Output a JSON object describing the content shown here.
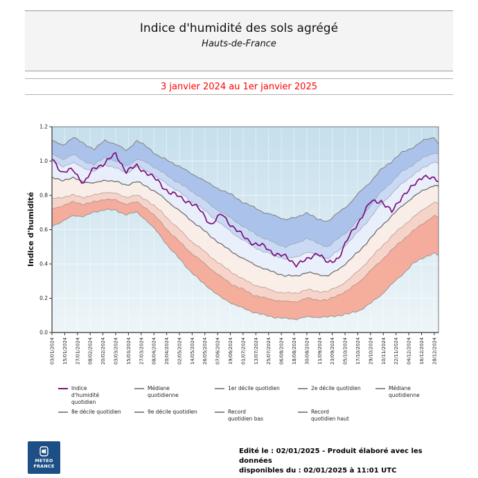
{
  "header": {
    "title": "Indice d'humidité des sols agrégé",
    "subtitle": "Hauts-de-France",
    "period": "3 janvier 2024 au 1er janvier 2025",
    "period_color": "#ff0000"
  },
  "chart_data": {
    "type": "area",
    "title": "Indice d'humidité des sols agrégé - Hauts-de-France",
    "xlabel": "",
    "ylabel": "Indice d'humidité",
    "ylim": [
      0,
      1.2
    ],
    "y_ticks": [
      "0.0",
      "0.2",
      "0.4",
      "0.6",
      "0.8",
      "1.0",
      "1.2"
    ],
    "x_tick_interval_days": 12,
    "x_tick_labels": [
      "03/01/2024",
      "15/01/2024",
      "27/01/2024",
      "08/02/2024",
      "20/02/2024",
      "03/03/2024",
      "15/03/2024",
      "27/03/2024",
      "08/04/2024",
      "20/04/2024",
      "02/05/2024",
      "14/05/2024",
      "26/05/2024",
      "07/06/2024",
      "19/06/2024",
      "01/07/2024",
      "13/07/2024",
      "25/07/2024",
      "06/08/2024",
      "18/08/2024",
      "30/08/2024",
      "11/09/2024",
      "23/09/2024",
      "05/10/2024",
      "17/10/2024",
      "29/10/2024",
      "10/11/2024",
      "22/11/2024",
      "04/12/2024",
      "16/12/2024",
      "28/12/2024"
    ],
    "sample_days": [
      0,
      10,
      20,
      30,
      40,
      50,
      60,
      70,
      80,
      90,
      100,
      110,
      120,
      130,
      140,
      150,
      160,
      170,
      180,
      190,
      200,
      210,
      220,
      230,
      240,
      250,
      260,
      270,
      280,
      290,
      300,
      310,
      320,
      330,
      340,
      350,
      360,
      364
    ],
    "background_gradient": [
      "#c5dfec",
      "#eef5f8"
    ],
    "series": [
      {
        "name": "Record quotidien haut",
        "color": "#868686",
        "width": 1.1,
        "values": [
          1.12,
          1.09,
          1.14,
          1.1,
          1.07,
          1.12,
          1.1,
          1.06,
          1.12,
          1.08,
          1.03,
          1.0,
          0.97,
          0.93,
          0.9,
          0.86,
          0.83,
          0.8,
          0.76,
          0.73,
          0.7,
          0.68,
          0.66,
          0.67,
          0.7,
          0.66,
          0.65,
          0.7,
          0.75,
          0.82,
          0.88,
          0.95,
          1.0,
          1.05,
          1.08,
          1.12,
          1.14,
          1.1
        ]
      },
      {
        "name": "9e décile quotidien",
        "color": "#a3aebc",
        "width": 1.0,
        "values": [
          1.04,
          1.01,
          1.04,
          1.0,
          0.98,
          1.02,
          1.0,
          0.97,
          1.01,
          0.99,
          0.95,
          0.91,
          0.87,
          0.83,
          0.79,
          0.74,
          0.7,
          0.66,
          0.62,
          0.58,
          0.55,
          0.52,
          0.5,
          0.52,
          0.55,
          0.52,
          0.5,
          0.55,
          0.6,
          0.67,
          0.74,
          0.82,
          0.88,
          0.94,
          0.98,
          1.02,
          1.05,
          1.04
        ]
      },
      {
        "name": "8e décile quotidien",
        "color": "#aab3bf",
        "width": 1.0,
        "values": [
          1.0,
          0.97,
          0.99,
          0.96,
          0.94,
          0.98,
          0.96,
          0.93,
          0.97,
          0.94,
          0.9,
          0.86,
          0.82,
          0.77,
          0.73,
          0.68,
          0.63,
          0.58,
          0.54,
          0.5,
          0.47,
          0.45,
          0.43,
          0.44,
          0.47,
          0.45,
          0.43,
          0.48,
          0.53,
          0.6,
          0.67,
          0.75,
          0.81,
          0.87,
          0.92,
          0.96,
          1.0,
          0.98
        ]
      },
      {
        "name": "Médiane quotidienne",
        "color": "#6f6f6f",
        "width": 1.3,
        "values": [
          0.9,
          0.89,
          0.9,
          0.88,
          0.87,
          0.89,
          0.88,
          0.86,
          0.88,
          0.85,
          0.81,
          0.76,
          0.71,
          0.66,
          0.61,
          0.56,
          0.51,
          0.47,
          0.43,
          0.4,
          0.37,
          0.35,
          0.33,
          0.33,
          0.35,
          0.34,
          0.33,
          0.37,
          0.42,
          0.48,
          0.55,
          0.62,
          0.68,
          0.74,
          0.79,
          0.83,
          0.86,
          0.85
        ]
      },
      {
        "name": "2e décile quotidien",
        "color": "#bda8a2",
        "width": 1.0,
        "values": [
          0.78,
          0.79,
          0.8,
          0.79,
          0.8,
          0.82,
          0.81,
          0.79,
          0.8,
          0.77,
          0.72,
          0.66,
          0.6,
          0.54,
          0.49,
          0.44,
          0.39,
          0.35,
          0.31,
          0.28,
          0.26,
          0.24,
          0.23,
          0.23,
          0.25,
          0.24,
          0.24,
          0.27,
          0.31,
          0.37,
          0.43,
          0.5,
          0.56,
          0.62,
          0.67,
          0.72,
          0.76,
          0.75
        ]
      },
      {
        "name": "1er décile quotidien",
        "color": "#b79992",
        "width": 1.0,
        "values": [
          0.72,
          0.74,
          0.76,
          0.75,
          0.76,
          0.78,
          0.77,
          0.75,
          0.76,
          0.72,
          0.66,
          0.59,
          0.53,
          0.47,
          0.42,
          0.37,
          0.32,
          0.28,
          0.25,
          0.22,
          0.2,
          0.19,
          0.18,
          0.18,
          0.2,
          0.19,
          0.19,
          0.22,
          0.25,
          0.3,
          0.36,
          0.42,
          0.48,
          0.54,
          0.59,
          0.64,
          0.68,
          0.67
        ]
      },
      {
        "name": "Record quotidien bas",
        "color": "#9b9b9b",
        "width": 1.1,
        "values": [
          0.62,
          0.65,
          0.68,
          0.68,
          0.7,
          0.72,
          0.71,
          0.69,
          0.7,
          0.65,
          0.58,
          0.5,
          0.43,
          0.36,
          0.3,
          0.25,
          0.2,
          0.17,
          0.14,
          0.12,
          0.1,
          0.09,
          0.08,
          0.08,
          0.09,
          0.09,
          0.09,
          0.1,
          0.11,
          0.13,
          0.17,
          0.22,
          0.28,
          0.34,
          0.4,
          0.44,
          0.46,
          0.45
        ]
      },
      {
        "name": "Indice d'humidité quotidien",
        "color": "#7b0c7b",
        "width": 1.7,
        "values": [
          1.02,
          0.93,
          0.95,
          0.87,
          0.96,
          0.99,
          1.04,
          0.94,
          0.97,
          0.93,
          0.88,
          0.82,
          0.79,
          0.76,
          0.71,
          0.63,
          0.69,
          0.62,
          0.56,
          0.52,
          0.5,
          0.46,
          0.44,
          0.4,
          0.42,
          0.47,
          0.4,
          0.44,
          0.56,
          0.66,
          0.76,
          0.77,
          0.7,
          0.8,
          0.85,
          0.92,
          0.89,
          0.88
        ]
      }
    ],
    "bands": [
      {
        "upper": 0,
        "lower": 1,
        "fill": "#a9c0ea"
      },
      {
        "upper": 1,
        "lower": 2,
        "fill": "#c8d8f3"
      },
      {
        "upper": 2,
        "lower": 3,
        "fill": "#e9effb"
      },
      {
        "upper": 3,
        "lower": 4,
        "fill": "#fbede7"
      },
      {
        "upper": 4,
        "lower": 5,
        "fill": "#f8d2c6"
      },
      {
        "upper": 5,
        "lower": 6,
        "fill": "#f5a997"
      }
    ],
    "legend_position": "bottom"
  },
  "legend": {
    "items": [
      {
        "label": "Indice d'humidité quotidien",
        "color": "#7b0c7b"
      },
      {
        "label": "Médiane quotidienne",
        "color": "#8a8a8a"
      },
      {
        "label": "1er décile quotidien",
        "color": "#8a8a8a"
      },
      {
        "label": "2e décile quotidien",
        "color": "#8a8a8a"
      },
      {
        "label": "Médiane quotidienne",
        "color": "#8a8a8a"
      },
      {
        "label": "8e décile quotidien",
        "color": "#8a8a8a"
      },
      {
        "label": "9e décile quotidien",
        "color": "#8a8a8a"
      },
      {
        "label": "Record quotidien bas",
        "color": "#8a8a8a"
      },
      {
        "label": "Record quotidien haut",
        "color": "#8a8a8a"
      }
    ]
  },
  "footer": {
    "logo_line1": "METEO",
    "logo_line2": "FRANCE",
    "logo_color": "#1d4e85",
    "text_line1": "Edité le : 02/01/2025 - Produit élaboré avec les données",
    "text_line2": "disponibles du : 02/01/2025 à 11:01 UTC"
  }
}
